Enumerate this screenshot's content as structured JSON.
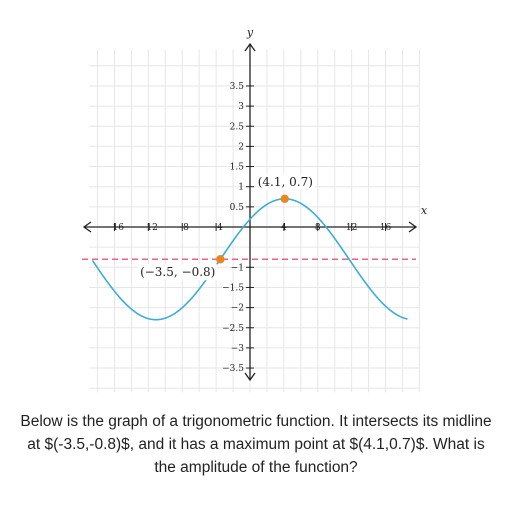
{
  "question": "Below is the graph of a trigonometric function. It intersects its midline at $(-3.5,-0.8)$, and it has a maximum point at $(4.1,0.7)$. What is the amplitude of the function?",
  "chart_data": {
    "type": "line",
    "xlabel": "x",
    "ylabel": "y",
    "xlim": [
      -19,
      20
    ],
    "ylim": [
      -4.1,
      4.4
    ],
    "x_ticks": [
      -16,
      -12,
      -8,
      -4,
      4,
      8,
      12,
      16
    ],
    "y_ticks": [
      -3.5,
      -3,
      -2.5,
      -2,
      -1.5,
      -1,
      0.5,
      1,
      1.5,
      2,
      2.5,
      3,
      3.5
    ],
    "x_tick_labels": [
      "−16",
      "−12",
      "−8",
      "−4",
      "4",
      "8",
      "12",
      "16"
    ],
    "y_tick_labels": [
      "−3.5",
      "−3",
      "−2.5",
      "−2",
      "−1.5",
      "−1",
      "0.5",
      "1",
      "1.5",
      "2",
      "2.5",
      "3",
      "3.5"
    ],
    "grid": true,
    "curve": {
      "color": "#3aaed8",
      "midline_point": [
        -3.5,
        -0.8
      ],
      "max_point": [
        4.1,
        0.7
      ],
      "x_range": [
        -18.6,
        18.6
      ]
    },
    "midline": {
      "y": -0.8,
      "color": "#e8628d",
      "style": "dashed"
    },
    "points": [
      {
        "x": -3.5,
        "y": -0.8,
        "label": "(−3.5, −0.8)",
        "color": "#e8871e"
      },
      {
        "x": 4.1,
        "y": 0.7,
        "label": "(4.1, 0.7)",
        "color": "#e8871e"
      }
    ]
  }
}
